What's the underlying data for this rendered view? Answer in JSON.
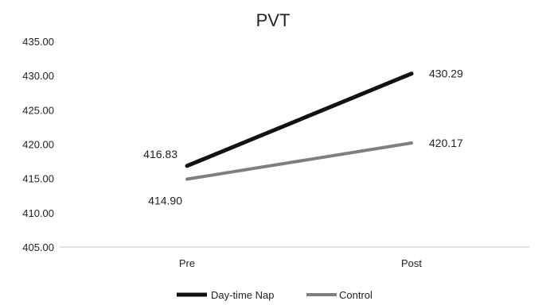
{
  "chart_data": {
    "type": "line",
    "title": "PVT",
    "xlabel": "",
    "ylabel": "",
    "categories": [
      "Pre",
      "Post"
    ],
    "ylim": [
      405,
      435
    ],
    "yticks": [
      "405.00",
      "410.00",
      "415.00",
      "420.00",
      "425.00",
      "430.00",
      "435.00"
    ],
    "grid": false,
    "legend_position": "bottom",
    "series": [
      {
        "name": "Day-time Nap",
        "values": [
          416.83,
          430.29
        ],
        "value_labels": [
          "416.83",
          "430.29"
        ],
        "color": "#111111"
      },
      {
        "name": "Control",
        "values": [
          414.9,
          420.17
        ],
        "value_labels": [
          "414.90",
          "420.17"
        ],
        "color": "#7f7f7f"
      }
    ]
  }
}
